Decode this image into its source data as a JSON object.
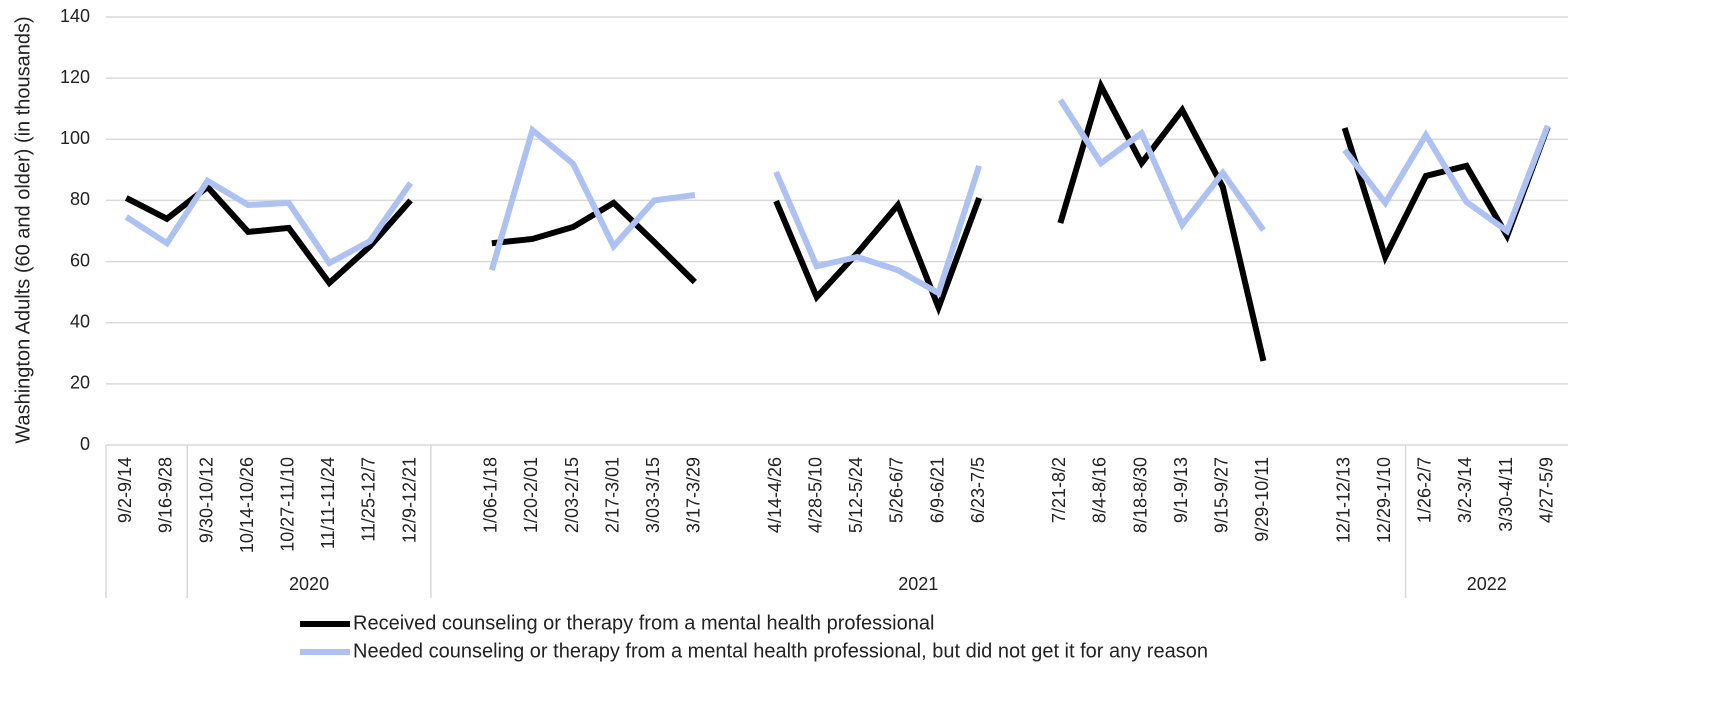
{
  "chart_data": {
    "type": "line",
    "y_label": "Washington Adults (60 and older) (in thousands)",
    "categories": [
      "9/2-9/14",
      "9/16-9/28",
      "9/30-10/12",
      "10/14-10/26",
      "10/27-11/10",
      "11/11-11/24",
      "11/25-12/7",
      "12/9-12/21",
      null,
      "1/06-1/18",
      "1/20-2/01",
      "2/03-2/15",
      "2/17-3/01",
      "3/03-3/15",
      "3/17-3/29",
      null,
      "4/14-4/26",
      "4/28-5/10",
      "5/12-5/24",
      "5/26-6/7",
      "6/9-6/21",
      "6/23-7/5",
      null,
      "7/21-8/2",
      "8/4-8/16",
      "8/18-8/30",
      "9/1-9/13",
      "9/15-9/27",
      "9/29-10/11",
      null,
      "12/1-12/13",
      "12/29-1/10",
      "1/26-2/7",
      "3/2-3/14",
      "3/30-4/11",
      "4/27-5/9"
    ],
    "groups": [
      {
        "name": null,
        "count": 2
      },
      {
        "name": "2020",
        "count": 6
      },
      {
        "name": "2021",
        "count": 24
      },
      {
        "name": "2022",
        "count": 4
      }
    ],
    "series": [
      {
        "name": "Received counseling or therapy from a mental health professional",
        "color": "#000000",
        "values": [
          80.8,
          74,
          84.4,
          69.7,
          71,
          53,
          65,
          80,
          null,
          66,
          67.4,
          71.3,
          79.2,
          66.4,
          53.3,
          null,
          79.8,
          48.4,
          62.8,
          78.5,
          45,
          80.8,
          null,
          72.6,
          117.4,
          92.2,
          109.6,
          84.4,
          27.5,
          null,
          103.7,
          61.5,
          88,
          91.3,
          68.4,
          104
        ]
      },
      {
        "name": "Needed counseling or therapy from a mental health professional, but did not get it for any reason",
        "color": "#adc1f3",
        "values": [
          74.6,
          66,
          86.4,
          78.5,
          79.2,
          59.5,
          66.7,
          85.7,
          null,
          57.2,
          103,
          92,
          65,
          80,
          81.8,
          null,
          89.3,
          58.5,
          61.5,
          57.2,
          49.7,
          91.3,
          null,
          112.9,
          92.2,
          102,
          72,
          89,
          70.3,
          null,
          96.5,
          79.2,
          101.4,
          79.5,
          70,
          104.4
        ]
      }
    ],
    "ylim": [
      0,
      140
    ],
    "yticks": [
      0,
      20,
      40,
      60,
      80,
      100,
      120,
      140
    ],
    "grid": true
  }
}
